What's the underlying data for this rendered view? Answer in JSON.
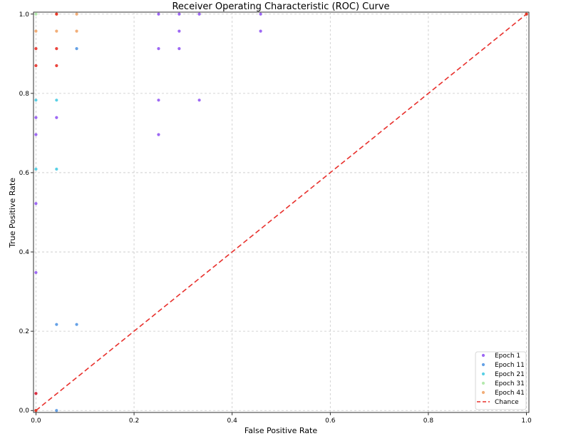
{
  "chart_data": {
    "type": "scatter",
    "title": "Receiver Operating Characteristic (ROC) Curve",
    "xlabel": "False Positive Rate",
    "ylabel": "True Positive Rate",
    "xlim": [
      -0.005,
      1.005
    ],
    "ylim": [
      -0.005,
      1.005
    ],
    "xticks": [
      0.0,
      0.2,
      0.4,
      0.6,
      0.8,
      1.0
    ],
    "yticks": [
      0.0,
      0.2,
      0.4,
      0.6,
      0.8,
      1.0
    ],
    "xtick_labels": [
      "0.0",
      "0.2",
      "0.4",
      "0.6",
      "0.8",
      "1.0"
    ],
    "ytick_labels": [
      "0.0",
      "0.2",
      "0.4",
      "0.6",
      "0.8",
      "1.0"
    ],
    "grid": true,
    "legend_position": "lower-right",
    "series": [
      {
        "name": "Epoch 1",
        "color": "#8c4df2",
        "points": [
          [
            0.0,
            0.0
          ],
          [
            0.0,
            0.043
          ],
          [
            0.0,
            0.348
          ],
          [
            0.0,
            0.522
          ],
          [
            0.0,
            0.696
          ],
          [
            0.0,
            0.739
          ],
          [
            0.042,
            0.739
          ],
          [
            0.25,
            0.696
          ],
          [
            0.25,
            0.783
          ],
          [
            0.333,
            0.783
          ],
          [
            0.25,
            0.913
          ],
          [
            0.292,
            0.913
          ],
          [
            0.292,
            0.957
          ],
          [
            0.25,
            1.0
          ],
          [
            0.292,
            1.0
          ],
          [
            0.333,
            1.0
          ],
          [
            0.458,
            0.957
          ],
          [
            0.458,
            1.0
          ],
          [
            1.0,
            1.0
          ]
        ]
      },
      {
        "name": "Epoch 11",
        "color": "#4a90e2",
        "points": [
          [
            0.0,
            0.0
          ],
          [
            0.042,
            0.0
          ],
          [
            0.042,
            0.217
          ],
          [
            0.083,
            0.217
          ],
          [
            0.083,
            0.913
          ],
          [
            1.0,
            1.0
          ]
        ]
      },
      {
        "name": "Epoch 21",
        "color": "#3cc8e0",
        "points": [
          [
            0.0,
            0.0
          ],
          [
            0.0,
            0.609
          ],
          [
            0.042,
            0.609
          ],
          [
            0.0,
            0.783
          ],
          [
            0.042,
            0.783
          ],
          [
            1.0,
            1.0
          ]
        ]
      },
      {
        "name": "Epoch 31",
        "color": "#a8e6a0",
        "points": [
          [
            0.0,
            0.0
          ],
          [
            0.0,
            1.0
          ],
          [
            1.0,
            1.0
          ]
        ]
      },
      {
        "name": "Epoch 41",
        "color": "#f0a060",
        "points": [
          [
            0.0,
            0.0
          ],
          [
            0.0,
            0.957
          ],
          [
            0.042,
            0.957
          ],
          [
            0.083,
            0.957
          ],
          [
            0.042,
            1.0
          ],
          [
            0.083,
            1.0
          ],
          [
            1.0,
            1.0
          ]
        ]
      },
      {
        "name": "",
        "color": "#e8241c",
        "points": [
          [
            0.0,
            0.0
          ],
          [
            0.0,
            0.043
          ],
          [
            0.0,
            0.87
          ],
          [
            0.0,
            0.913
          ],
          [
            0.042,
            0.87
          ],
          [
            0.042,
            0.913
          ],
          [
            0.042,
            1.0
          ],
          [
            1.0,
            1.0
          ]
        ]
      }
    ],
    "reference_line": {
      "name": "Chance",
      "style": "dashed",
      "color": "#e8302c",
      "x": [
        0,
        1
      ],
      "y": [
        0,
        1
      ]
    }
  }
}
